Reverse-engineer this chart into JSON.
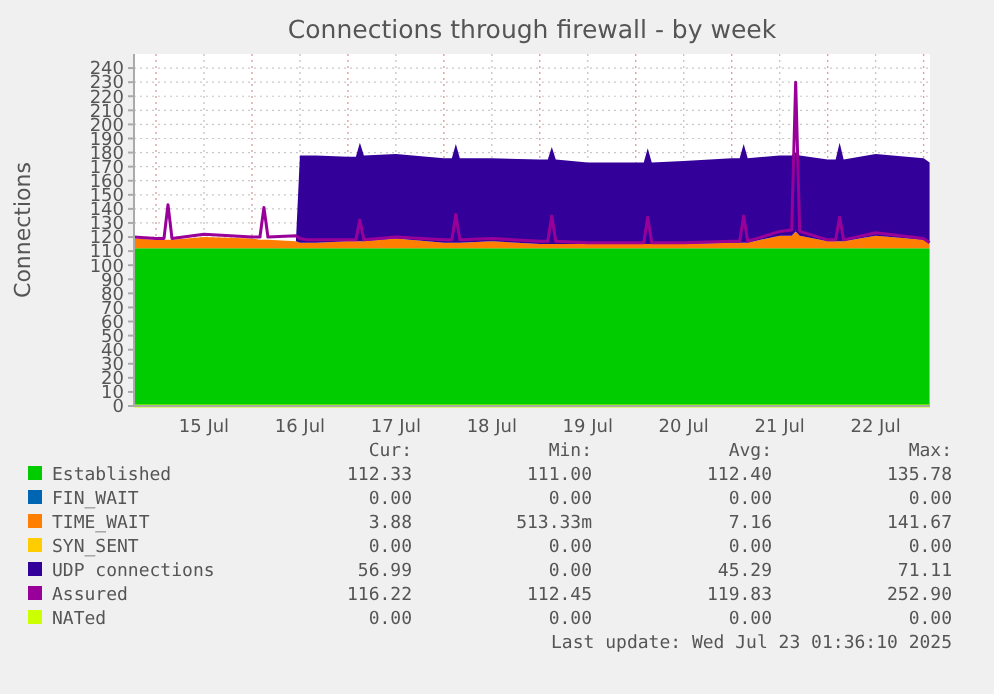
{
  "chart_data": {
    "type": "area",
    "title": "Connections through firewall - by week",
    "ylabel": "Connections",
    "stacked": true,
    "grid": true,
    "legend": "bottom",
    "xlim": [
      "2025-07-14T18:30",
      "2025-07-23T01:36"
    ],
    "xticks": [
      {
        "value": "2025-07-15T00:00",
        "label": null
      },
      {
        "value": "2025-07-15T12:00",
        "label": "15 Jul"
      },
      {
        "value": "2025-07-16T00:00",
        "label": null
      },
      {
        "value": "2025-07-16T12:00",
        "label": "16 Jul"
      },
      {
        "value": "2025-07-17T00:00",
        "label": null
      },
      {
        "value": "2025-07-17T12:00",
        "label": "17 Jul"
      },
      {
        "value": "2025-07-18T00:00",
        "label": null
      },
      {
        "value": "2025-07-18T12:00",
        "label": "18 Jul"
      },
      {
        "value": "2025-07-19T00:00",
        "label": null
      },
      {
        "value": "2025-07-19T12:00",
        "label": "19 Jul"
      },
      {
        "value": "2025-07-20T00:00",
        "label": null
      },
      {
        "value": "2025-07-20T12:00",
        "label": "20 Jul"
      },
      {
        "value": "2025-07-21T00:00",
        "label": null
      },
      {
        "value": "2025-07-21T12:00",
        "label": "21 Jul"
      },
      {
        "value": "2025-07-22T00:00",
        "label": null
      },
      {
        "value": "2025-07-22T12:00",
        "label": "22 Jul"
      },
      {
        "value": "2025-07-23T00:00",
        "label": null
      }
    ],
    "ylim": [
      0,
      250
    ],
    "yticks": [
      0,
      10,
      20,
      30,
      40,
      50,
      60,
      70,
      80,
      90,
      100,
      110,
      120,
      130,
      140,
      150,
      160,
      170,
      180,
      190,
      200,
      210,
      220,
      230,
      240
    ],
    "x": [
      "2025-07-14T18:30",
      "2025-07-15T00:00",
      "2025-07-15T02:00",
      "2025-07-15T03:00",
      "2025-07-15T04:00",
      "2025-07-15T12:00",
      "2025-07-16T00:00",
      "2025-07-16T02:00",
      "2025-07-16T03:00",
      "2025-07-16T04:00",
      "2025-07-16T11:00",
      "2025-07-16T12:00",
      "2025-07-16T14:00",
      "2025-07-16T16:00",
      "2025-07-17T00:00",
      "2025-07-17T02:00",
      "2025-07-17T03:00",
      "2025-07-17T04:00",
      "2025-07-17T12:00",
      "2025-07-18T00:00",
      "2025-07-18T02:00",
      "2025-07-18T03:00",
      "2025-07-18T04:00",
      "2025-07-18T12:00",
      "2025-07-19T00:00",
      "2025-07-19T02:00",
      "2025-07-19T03:00",
      "2025-07-19T04:00",
      "2025-07-19T12:00",
      "2025-07-20T00:00",
      "2025-07-20T02:00",
      "2025-07-20T03:00",
      "2025-07-20T04:00",
      "2025-07-20T12:00",
      "2025-07-21T00:00",
      "2025-07-21T02:00",
      "2025-07-21T03:00",
      "2025-07-21T04:00",
      "2025-07-21T12:00",
      "2025-07-21T15:00",
      "2025-07-21T16:00",
      "2025-07-21T17:00",
      "2025-07-22T00:00",
      "2025-07-22T02:00",
      "2025-07-22T03:00",
      "2025-07-22T04:00",
      "2025-07-22T12:00",
      "2025-07-23T00:00",
      "2025-07-23T01:30"
    ],
    "series": [
      {
        "name": "Established",
        "color": "#00cc00",
        "values": [
          112,
          112,
          112,
          112,
          112,
          112,
          112,
          112,
          112,
          112,
          112,
          112,
          112,
          112,
          112,
          112,
          112,
          112,
          112,
          112,
          112,
          112,
          112,
          112,
          112,
          112,
          112,
          112,
          112,
          112,
          112,
          112,
          112,
          112,
          112,
          112,
          112,
          112,
          112,
          112,
          112,
          112,
          112,
          112,
          112,
          112,
          112,
          112,
          112
        ]
      },
      {
        "name": "FIN_WAIT",
        "color": "#0066b3",
        "values": [
          null,
          null,
          null,
          null,
          null,
          null,
          null,
          null,
          null,
          null,
          null,
          null,
          null,
          null,
          null,
          null,
          null,
          null,
          null,
          null,
          null,
          null,
          null,
          null,
          null,
          null,
          null,
          null,
          null,
          null,
          null,
          null,
          null,
          null,
          null,
          null,
          null,
          null,
          null,
          null,
          null,
          null,
          null,
          null,
          null,
          null,
          null,
          null,
          null
        ]
      },
      {
        "name": "TIME_WAIT",
        "color": "#ff8000",
        "values": [
          7,
          6,
          6,
          6,
          6,
          8,
          7,
          6,
          6,
          6,
          5,
          4,
          4,
          4,
          5,
          5,
          5,
          5,
          7,
          4,
          4,
          4,
          4,
          5,
          3,
          3,
          3,
          3,
          3,
          3,
          3,
          3,
          3,
          3,
          4,
          4,
          4,
          4,
          9,
          9,
          12,
          9,
          5,
          5,
          5,
          5,
          9,
          6,
          4
        ]
      },
      {
        "name": "SYN_SENT",
        "color": "#ffcc00",
        "values": [
          null,
          null,
          null,
          null,
          null,
          null,
          null,
          null,
          null,
          null,
          null,
          null,
          null,
          null,
          null,
          null,
          null,
          null,
          null,
          null,
          null,
          null,
          null,
          null,
          null,
          null,
          null,
          null,
          null,
          null,
          null,
          null,
          null,
          null,
          null,
          null,
          null,
          null,
          null,
          null,
          null,
          null,
          null,
          null,
          null,
          null,
          null,
          null,
          null
        ]
      },
      {
        "name": "UDP connections",
        "color": "#330099",
        "values": [
          0,
          0,
          0,
          0,
          0,
          0,
          0,
          0,
          0,
          0,
          0,
          62,
          62,
          62,
          60,
          60,
          70,
          61,
          60,
          60,
          60,
          70,
          60,
          59,
          60,
          60,
          69,
          60,
          58,
          58,
          58,
          68,
          58,
          59,
          60,
          60,
          70,
          60,
          57,
          57,
          56,
          57,
          58,
          58,
          70,
          58,
          58,
          58,
          57
        ]
      },
      {
        "name": "Assured",
        "type": "line",
        "color": "#990099",
        "values": [
          120,
          119,
          119,
          143,
          119,
          122,
          120,
          120,
          141,
          120,
          121,
          119,
          118,
          118,
          118,
          118,
          132,
          118,
          120,
          118,
          118,
          136,
          118,
          119,
          117,
          117,
          135,
          117,
          116,
          116,
          116,
          134,
          116,
          116,
          117,
          117,
          135,
          117,
          124,
          125,
          230,
          124,
          118,
          118,
          134,
          118,
          123,
          119,
          116
        ]
      },
      {
        "name": "NATed",
        "type": "line",
        "color": "#ccff00",
        "values": [
          0,
          0,
          0,
          0,
          0,
          0,
          0,
          0,
          0,
          0,
          0,
          0,
          0,
          0,
          0,
          0,
          0,
          0,
          0,
          0,
          0,
          0,
          0,
          0,
          0,
          0,
          0,
          0,
          0,
          0,
          0,
          0,
          0,
          0,
          0,
          0,
          0,
          0,
          0,
          0,
          0,
          0,
          0,
          0,
          0,
          0,
          0,
          0,
          0
        ]
      }
    ],
    "annotations": [
      "Cur:",
      "Min:",
      "Avg:",
      "Max:",
      "112.33",
      "111.00",
      "112.40",
      "135.78",
      "0.00",
      "0.00",
      "0.00",
      "0.00",
      "3.88",
      "513.33m",
      "7.16",
      "141.67",
      "0.00",
      "0.00",
      "0.00",
      "0.00",
      "56.99",
      "0.00",
      "45.29",
      "71.11",
      "116.22",
      "112.45",
      "119.83",
      "252.90",
      "0.00",
      "0.00",
      "0.00",
      "0.00",
      "Last update: Wed Jul 23 01:36:10 2025"
    ]
  }
}
